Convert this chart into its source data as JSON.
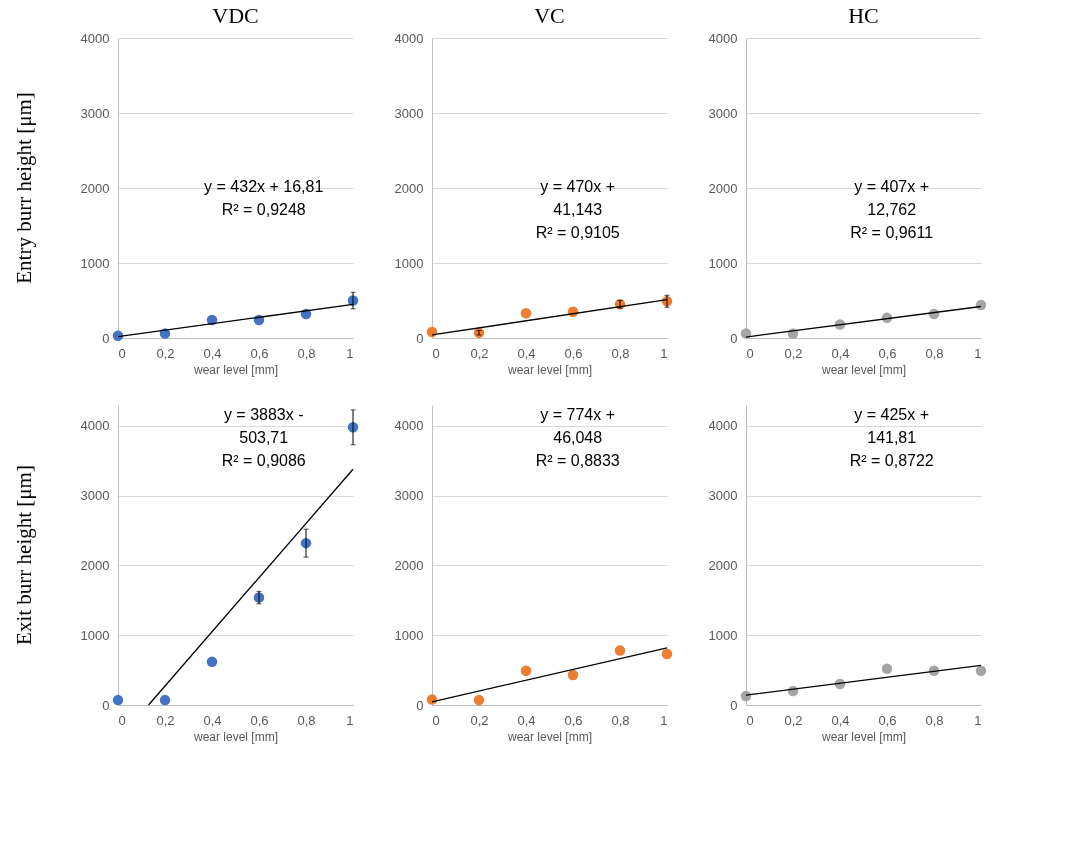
{
  "chart_data": [
    {
      "type": "scatter",
      "title": "VDC",
      "xlabel": "wear level [mm]",
      "ylabel": "Entry burr height [μm]",
      "x": [
        0,
        0.2,
        0.4,
        0.6,
        0.8,
        1
      ],
      "xlim": [
        0,
        1
      ],
      "ylim": [
        0,
        4000
      ],
      "xticks": [
        {
          "value": 0,
          "label": "0"
        },
        {
          "value": 0.2,
          "label": "0,2"
        },
        {
          "value": 0.4,
          "label": "0,4"
        },
        {
          "value": 0.6,
          "label": "0,6"
        },
        {
          "value": 0.8,
          "label": "0,8"
        },
        {
          "value": 1,
          "label": "1"
        }
      ],
      "yticks": [
        0,
        1000,
        2000,
        3000,
        4000
      ],
      "grid": "y",
      "annotations": [
        "y = 432x + 16,81",
        "R² = 0,9248"
      ],
      "series": [
        {
          "color": "#4472c4",
          "marker": "circle",
          "values": [
            30,
            60,
            240,
            240,
            320,
            500
          ],
          "errors": [
            null,
            null,
            null,
            null,
            null,
            110
          ]
        },
        {
          "type": "line",
          "color": "#000000",
          "marker": "none",
          "line_style": "solid",
          "x": [
            0,
            1
          ],
          "values": [
            17,
            449
          ]
        }
      ]
    },
    {
      "type": "scatter",
      "title": "VC",
      "xlabel": "wear level [mm]",
      "x": [
        0,
        0.2,
        0.4,
        0.6,
        0.8,
        1
      ],
      "xlim": [
        0,
        1
      ],
      "ylim": [
        0,
        4000
      ],
      "xticks": [
        {
          "value": 0,
          "label": "0"
        },
        {
          "value": 0.2,
          "label": "0,2"
        },
        {
          "value": 0.4,
          "label": "0,4"
        },
        {
          "value": 0.6,
          "label": "0,6"
        },
        {
          "value": 0.8,
          "label": "0,8"
        },
        {
          "value": 1,
          "label": "1"
        }
      ],
      "yticks": [
        0,
        1000,
        2000,
        3000,
        4000
      ],
      "grid": "y",
      "annotations": [
        "y = 470x +",
        "41,143",
        "R² = 0,9105"
      ],
      "series": [
        {
          "color": "#ed7d31",
          "marker": "circle",
          "values": [
            80,
            70,
            330,
            350,
            450,
            490
          ],
          "errors": [
            null,
            30,
            null,
            null,
            50,
            80
          ]
        },
        {
          "type": "line",
          "color": "#000000",
          "marker": "none",
          "line_style": "solid",
          "x": [
            0,
            1
          ],
          "values": [
            41,
            511
          ]
        }
      ]
    },
    {
      "type": "scatter",
      "title": "HC",
      "xlabel": "wear level [mm]",
      "x": [
        0,
        0.2,
        0.4,
        0.6,
        0.8,
        1
      ],
      "xlim": [
        0,
        1
      ],
      "ylim": [
        0,
        4000
      ],
      "xticks": [
        {
          "value": 0,
          "label": "0"
        },
        {
          "value": 0.2,
          "label": "0,2"
        },
        {
          "value": 0.4,
          "label": "0,4"
        },
        {
          "value": 0.6,
          "label": "0,6"
        },
        {
          "value": 0.8,
          "label": "0,8"
        },
        {
          "value": 1,
          "label": "1"
        }
      ],
      "yticks": [
        0,
        1000,
        2000,
        3000,
        4000
      ],
      "grid": "y",
      "annotations": [
        "y = 407x +",
        "12,762",
        "R² = 0,9611"
      ],
      "series": [
        {
          "color": "#a5a5a5",
          "marker": "circle",
          "values": [
            60,
            60,
            180,
            270,
            320,
            440
          ]
        },
        {
          "type": "line",
          "color": "#000000",
          "marker": "none",
          "line_style": "solid",
          "x": [
            0,
            1
          ],
          "values": [
            13,
            420
          ]
        }
      ]
    },
    {
      "type": "scatter",
      "xlabel": "wear level [mm]",
      "ylabel": "Exit burr height [μm]",
      "x": [
        0,
        0.2,
        0.4,
        0.6,
        0.8,
        1
      ],
      "xlim": [
        0,
        1
      ],
      "ylim": [
        0,
        4300
      ],
      "xticks": [
        {
          "value": 0,
          "label": "0"
        },
        {
          "value": 0.2,
          "label": "0,2"
        },
        {
          "value": 0.4,
          "label": "0,4"
        },
        {
          "value": 0.6,
          "label": "0,6"
        },
        {
          "value": 0.8,
          "label": "0,8"
        },
        {
          "value": 1,
          "label": "1"
        }
      ],
      "yticks": [
        0,
        1000,
        2000,
        3000,
        4000
      ],
      "grid": "y",
      "annotations": [
        "y = 3883x -",
        "503,71",
        "R² = 0,9086"
      ],
      "series": [
        {
          "color": "#4472c4",
          "marker": "circle",
          "values": [
            70,
            70,
            620,
            1540,
            2320,
            3980
          ],
          "errors": [
            null,
            null,
            null,
            90,
            200,
            250
          ]
        },
        {
          "type": "line",
          "color": "#000000",
          "marker": "none",
          "line_style": "solid",
          "x": [
            0.13,
            1
          ],
          "values": [
            0,
            3379
          ]
        }
      ]
    },
    {
      "type": "scatter",
      "xlabel": "wear level [mm]",
      "xlim": [
        0,
        1
      ],
      "ylim": [
        0,
        4300
      ],
      "xticks": [
        {
          "value": 0,
          "label": "0"
        },
        {
          "value": 0.2,
          "label": "0,2"
        },
        {
          "value": 0.4,
          "label": "0,4"
        },
        {
          "value": 0.6,
          "label": "0,6"
        },
        {
          "value": 0.8,
          "label": "0,8"
        },
        {
          "value": 1,
          "label": "1"
        }
      ],
      "yticks": [
        0,
        1000,
        2000,
        3000,
        4000
      ],
      "grid": "y",
      "annotations": [
        "y = 774x +",
        "46,048",
        "R² = 0,8833"
      ],
      "series": [
        {
          "color": "#ed7d31",
          "marker": "circle",
          "values": [
            80,
            70,
            490,
            430,
            780,
            730
          ],
          "x": [
            0,
            0.2,
            0.4,
            0.6,
            0.8,
            1
          ]
        },
        {
          "type": "line",
          "color": "#000000",
          "marker": "none",
          "line_style": "solid",
          "x": [
            0,
            1
          ],
          "values": [
            46,
            820
          ]
        }
      ]
    },
    {
      "type": "scatter",
      "xlabel": "wear level [mm]",
      "x": [
        0,
        0.2,
        0.4,
        0.6,
        0.8,
        1
      ],
      "xlim": [
        0,
        1
      ],
      "ylim": [
        0,
        4300
      ],
      "xticks": [
        {
          "value": 0,
          "label": "0"
        },
        {
          "value": 0.2,
          "label": "0,2"
        },
        {
          "value": 0.4,
          "label": "0,4"
        },
        {
          "value": 0.6,
          "label": "0,6"
        },
        {
          "value": 0.8,
          "label": "0,8"
        },
        {
          "value": 1,
          "label": "1"
        }
      ],
      "yticks": [
        0,
        1000,
        2000,
        3000,
        4000
      ],
      "grid": "y",
      "annotations": [
        "y = 425x +",
        "141,81",
        "R² = 0,8722"
      ],
      "series": [
        {
          "color": "#a5a5a5",
          "marker": "circle",
          "values": [
            130,
            200,
            300,
            520,
            490,
            490
          ]
        },
        {
          "type": "line",
          "color": "#000000",
          "marker": "none",
          "line_style": "solid",
          "x": [
            0,
            1
          ],
          "values": [
            142,
            567
          ]
        }
      ]
    }
  ]
}
